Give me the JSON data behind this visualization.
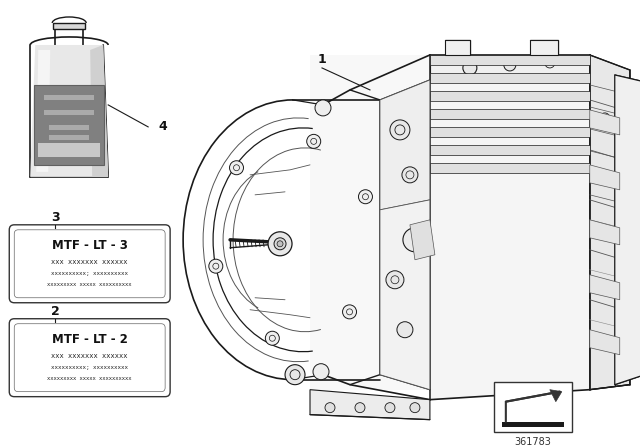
{
  "bg_color": "#ffffff",
  "part_number": "361783",
  "label1_title": "MTF - LT - 3",
  "label1_line1": "xxx xxxxxxx xxxxxx",
  "label1_line2": "xxxxxxxxxx; xxxxxxxxxx",
  "label1_line3": "xxxxxxxxx xxxxx xxxxxxxxxx",
  "label2_title": "MTF - LT - 2",
  "label2_line1": "xxx xxxxxxx xxxxxx",
  "label2_line2": "xxxxxxxxxx; xxxxxxxxxx",
  "label2_line3": "xxxxxxxxx xxxxx xxxxxxxxxx",
  "callout_1": "1",
  "callout_2": "2",
  "callout_3": "3",
  "callout_4": "4",
  "line_color": "#1a1a1a",
  "line_color_light": "#888888",
  "line_color_mid": "#555555"
}
